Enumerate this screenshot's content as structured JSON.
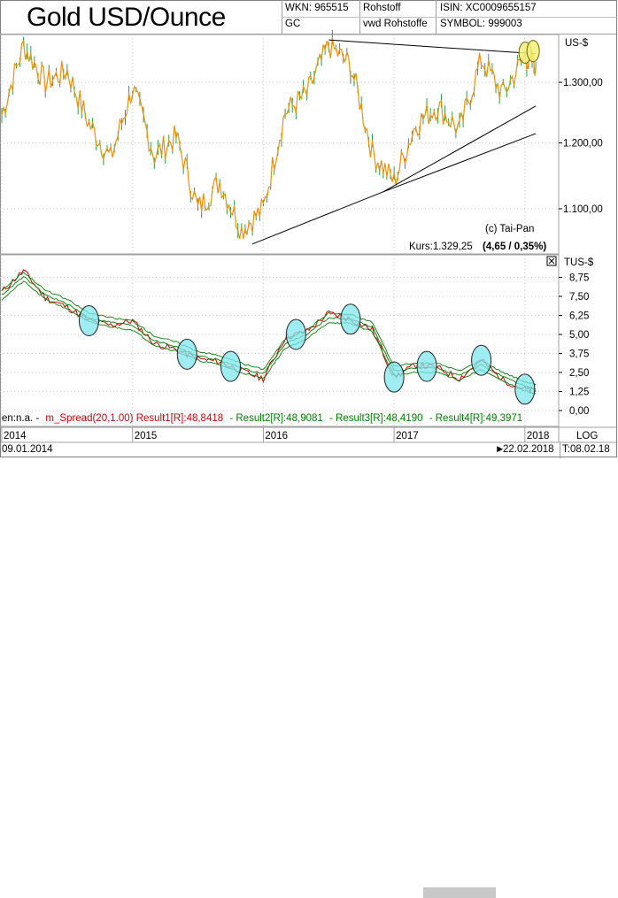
{
  "header": {
    "title": "Gold USD/Ounce",
    "wkn": "WKN: 965515",
    "code": "GC",
    "category": "Rohstoff",
    "source": "vwd Rohstoffe",
    "isin": "ISIN: XC0009655157",
    "symbol": "SYMBOL: 999003"
  },
  "main_panel": {
    "unit": "US-$",
    "copyright": "(c) Tai-Pan",
    "kurs_label": "Kurs:1.329,25",
    "kurs_change": "(4,65 / 0,35%)"
  },
  "indicator_panel": {
    "unit": "TUS-$",
    "legend_prefix": "en:n.a. -",
    "legend_items": [
      {
        "text": "m_Spread(20,1.00) Result1[R]:48,8418",
        "color": "#d40000"
      },
      {
        "text": "- Result2[R]:48,9081",
        "color": "#008000"
      },
      {
        "text": "- Result3[R]:48,4190",
        "color": "#008000"
      },
      {
        "text": "- Result4[R]:49,3971",
        "color": "#008000"
      }
    ]
  },
  "time_axis": {
    "years": [
      "2014",
      "2015",
      "2016",
      "2017",
      "2018"
    ],
    "scale_label": "LOG"
  },
  "status_bar": {
    "start_date": "09.01.2014",
    "end_date": "22.02.2018",
    "arrow": "►",
    "current_date": "T:08.02.18"
  },
  "colors": {
    "price_line": "#f0900a",
    "price_bars": "#2aa048",
    "spread_red": "#d40000",
    "spread_green": "#008000",
    "highlight_fill": "#7fe6ee",
    "highlight_yellow": "#f5f07a",
    "trendline": "#000000"
  },
  "chart_data": [
    {
      "type": "line",
      "title": "Gold USD/Ounce",
      "ylabel": "US-$",
      "y_scale": "log",
      "ylim": [
        1040,
        1380
      ],
      "y_ticks": [
        "1.100,00",
        "1.200,00",
        "1.300,00"
      ],
      "x_ticks": [
        "2014",
        "2015",
        "2016",
        "2017",
        "2018"
      ],
      "x": [
        "2014-01",
        "2014-03",
        "2014-05",
        "2014-07",
        "2014-09",
        "2014-11",
        "2015-01",
        "2015-03",
        "2015-05",
        "2015-07",
        "2015-09",
        "2015-11",
        "2016-01",
        "2016-03",
        "2016-05",
        "2016-07",
        "2016-09",
        "2016-11",
        "2017-01",
        "2017-03",
        "2017-05",
        "2017-07",
        "2017-09",
        "2017-11",
        "2018-01",
        "2018-02"
      ],
      "series": [
        {
          "values": [
            1245,
            1365,
            1300,
            1320,
            1230,
            1175,
            1290,
            1180,
            1210,
            1100,
            1140,
            1070,
            1100,
            1250,
            1280,
            1365,
            1330,
            1185,
            1140,
            1230,
            1260,
            1220,
            1340,
            1280,
            1345,
            1329.25
          ]
        }
      ],
      "trendlines": [
        {
          "from": [
            "2015-12",
            1050
          ],
          "to": [
            "2016-12",
            1125
          ]
        },
        {
          "from": [
            "2016-12",
            1125
          ],
          "to": [
            "2018-02",
            1260
          ]
        },
        {
          "from": [
            "2016-12",
            1125
          ],
          "to": [
            "2018-02",
            1215
          ]
        },
        {
          "from": [
            "2016-07",
            1375
          ],
          "to": [
            "2018-02",
            1350
          ]
        }
      ]
    },
    {
      "type": "line",
      "ylabel": "TUS-$",
      "ylim": [
        0,
        10
      ],
      "y_ticks": [
        "0,00",
        "1,25",
        "2,50",
        "3,75",
        "5,00",
        "6,25",
        "7,50",
        "8,75"
      ],
      "x": [
        "2014-01",
        "2014-03",
        "2014-05",
        "2014-07",
        "2014-09",
        "2014-11",
        "2015-01",
        "2015-03",
        "2015-05",
        "2015-07",
        "2015-09",
        "2015-11",
        "2016-01",
        "2016-03",
        "2016-05",
        "2016-07",
        "2016-09",
        "2016-11",
        "2017-01",
        "2017-03",
        "2017-05",
        "2017-07",
        "2017-09",
        "2017-11",
        "2018-01",
        "2018-02"
      ],
      "series": [
        {
          "name": "m_Spread(20,1.00)",
          "values": [
            7.8,
            9.2,
            7.4,
            6.8,
            5.9,
            5.6,
            5.9,
            4.4,
            4.0,
            3.4,
            3.2,
            2.6,
            2.1,
            4.8,
            5.2,
            6.4,
            6.0,
            5.3,
            2.2,
            3.0,
            2.8,
            2.1,
            3.3,
            2.0,
            1.4,
            1.3
          ]
        },
        {
          "name": "Result2[R]",
          "values": [
            7.6,
            8.8,
            7.6,
            7.0,
            6.1,
            5.8,
            5.6,
            4.6,
            4.2,
            3.6,
            3.3,
            2.8,
            2.4,
            4.4,
            5.0,
            6.1,
            6.0,
            5.5,
            2.6,
            2.8,
            2.8,
            2.3,
            3.0,
            2.2,
            1.6,
            1.4
          ]
        },
        {
          "name": "Result3[R]",
          "values": [
            7.3,
            8.5,
            7.3,
            6.7,
            5.8,
            5.5,
            5.3,
            4.3,
            3.9,
            3.3,
            3.0,
            2.5,
            2.1,
            4.1,
            4.7,
            5.8,
            5.7,
            5.2,
            2.3,
            2.5,
            2.5,
            2.0,
            2.7,
            1.9,
            1.3,
            1.1
          ]
        },
        {
          "name": "Result4[R]",
          "values": [
            7.9,
            9.1,
            7.9,
            7.3,
            6.4,
            6.1,
            5.9,
            4.9,
            4.5,
            3.9,
            3.6,
            3.1,
            2.7,
            4.7,
            5.3,
            6.4,
            6.3,
            5.8,
            2.9,
            3.1,
            3.1,
            2.6,
            3.3,
            2.5,
            1.9,
            1.7
          ]
        }
      ],
      "highlights": [
        "2014-09",
        "2015-06",
        "2015-10",
        "2016-04",
        "2016-09",
        "2017-01",
        "2017-04",
        "2017-09",
        "2018-01"
      ]
    }
  ]
}
